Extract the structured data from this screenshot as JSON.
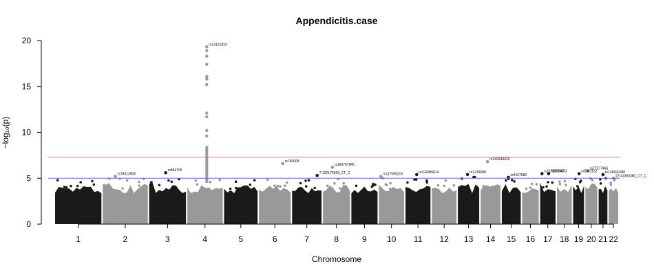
{
  "chart_data": {
    "type": "scatter",
    "title": "Appendicitis.case",
    "xlabel": "Chromosome",
    "ylabel": "−log₁₀(p)",
    "ylim": [
      0,
      20
    ],
    "yticks": [
      0,
      5,
      10,
      15,
      20
    ],
    "grid": false,
    "legend": "none",
    "thresholds": {
      "genome_wide": 7.3,
      "suggestive": 5.0
    },
    "colors": {
      "dark": "#1a1a1a",
      "light": "#999999",
      "highlight": "#1a1a40",
      "genome_wide_line": "#ff6666",
      "suggestive_line": "#6666cc"
    },
    "chromosomes": [
      {
        "label": "1",
        "top": 4.8
      },
      {
        "label": "2",
        "top": 5.2
      },
      {
        "label": "3",
        "top": 5.4
      },
      {
        "label": "4",
        "top": 4.9
      },
      {
        "label": "5",
        "top": 4.8
      },
      {
        "label": "6",
        "top": 4.9
      },
      {
        "label": "7",
        "top": 4.9
      },
      {
        "label": "8",
        "top": 5.0
      },
      {
        "label": "9",
        "top": 4.7
      },
      {
        "label": "10",
        "top": 5.1
      },
      {
        "label": "11",
        "top": 4.9
      },
      {
        "label": "12",
        "top": 4.8
      },
      {
        "label": "13",
        "top": 5.3
      },
      {
        "label": "14",
        "top": 5.0
      },
      {
        "label": "15",
        "top": 5.1
      },
      {
        "label": "16",
        "top": 5.3
      },
      {
        "label": "17",
        "top": 5.4
      },
      {
        "label": "18",
        "top": 4.8
      },
      {
        "label": "19",
        "top": 5.2
      },
      {
        "label": "20",
        "top": 5.4
      },
      {
        "label": "21",
        "top": 5.1
      },
      {
        "label": "22",
        "top": 5.0
      }
    ],
    "top_snps": [
      {
        "label": "rs78312808",
        "chr": "2",
        "pos": 0.28,
        "y": 5.2
      },
      {
        "label": "rs864705",
        "chr": "3",
        "pos": 0.45,
        "y": 5.6
      },
      {
        "label": "rs13121924",
        "chr": "4",
        "pos": 0.55,
        "y": 19.3
      },
      {
        "label": "rs760608",
        "chr": "6",
        "pos": 0.75,
        "y": 6.6
      },
      {
        "label": "7:122170369_CT_C",
        "chr": "7",
        "pos": 0.85,
        "y": 5.3
      },
      {
        "label": "rs180767845",
        "chr": "8",
        "pos": 0.35,
        "y": 6.2
      },
      {
        "label": "rs117596216",
        "chr": "10",
        "pos": 0.08,
        "y": 5.2
      },
      {
        "label": "rs192985814",
        "chr": "11",
        "pos": 0.45,
        "y": 5.4
      },
      {
        "label": "rs1239688",
        "chr": "13",
        "pos": 0.45,
        "y": 5.4
      },
      {
        "label": "rs142944429",
        "chr": "14",
        "pos": 0.35,
        "y": 6.8
      },
      {
        "label": "rs4107680",
        "chr": "15",
        "pos": 0.35,
        "y": 5.1
      },
      {
        "label": "rs117665347",
        "chr": "17",
        "pos": 0.12,
        "y": 5.5
      },
      {
        "label": "rs8074063",
        "chr": "17",
        "pos": 0.55,
        "y": 5.5
      },
      {
        "label": "rs5881152",
        "chr": "19",
        "pos": 0.55,
        "y": 5.5
      },
      {
        "label": "rs77377466",
        "chr": "20",
        "pos": 0.2,
        "y": 5.8
      },
      {
        "label": "rs145690280",
        "chr": "21",
        "pos": 0.5,
        "y": 5.4
      },
      {
        "label": "22:41393380_CT_C",
        "chr": "22",
        "pos": 0.5,
        "y": 5.0
      }
    ]
  }
}
